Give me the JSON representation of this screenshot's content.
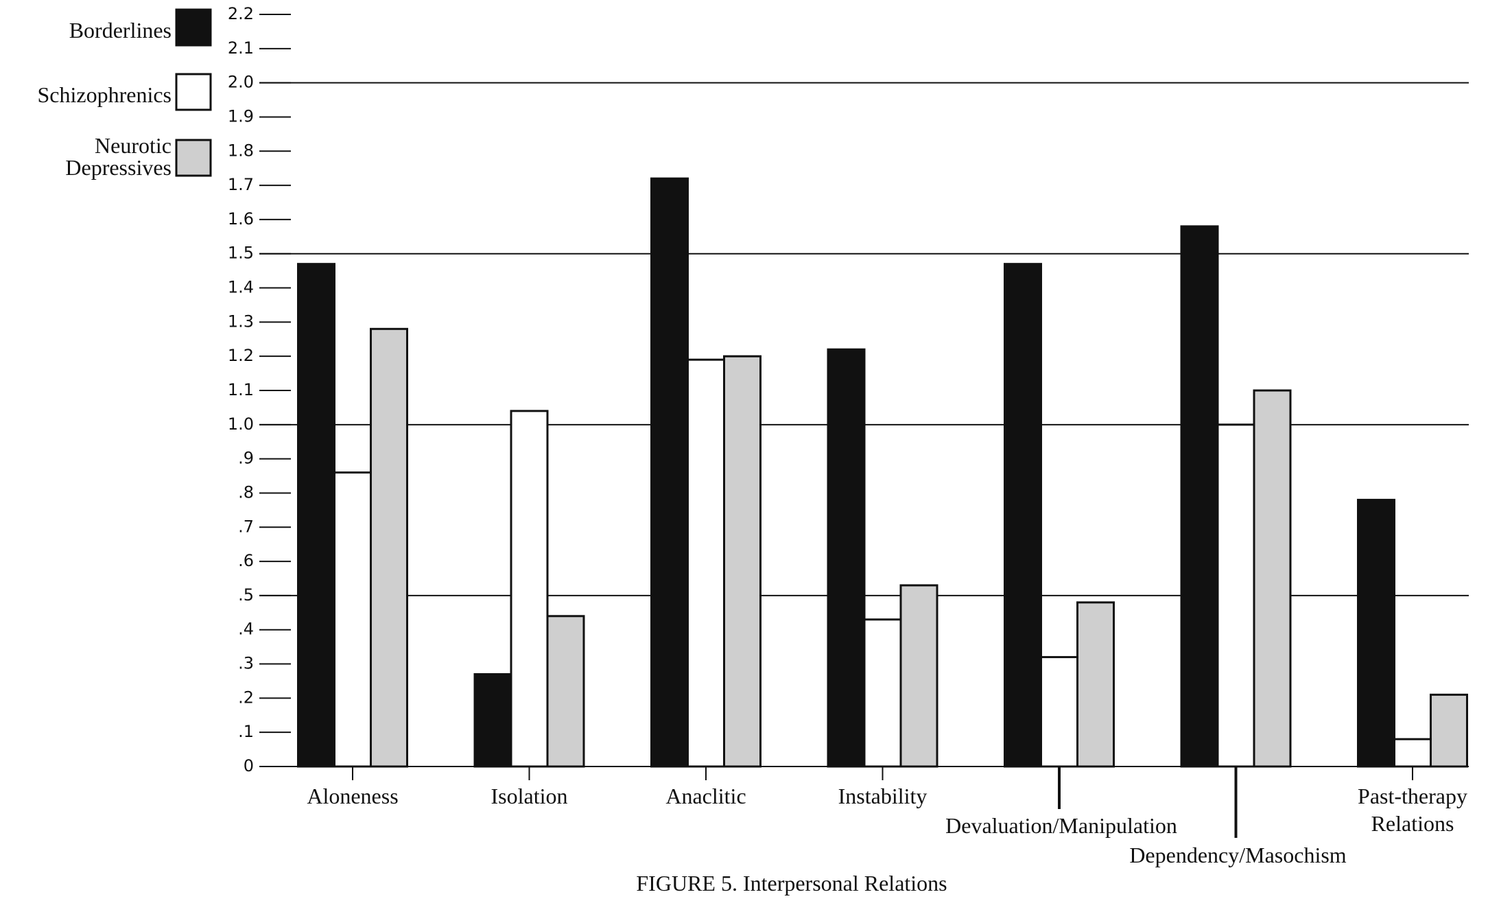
{
  "chart_data": {
    "type": "bar",
    "title": "FIGURE 5. Interpersonal Relations",
    "categories": [
      "Aloneness",
      "Isolation",
      "Anaclitic",
      "Instability",
      "Devaluation/Manipulation",
      "Dependency/Masochism",
      "Past-therapy Relations"
    ],
    "series": [
      {
        "name": "Borderlines",
        "color": "#111111",
        "values": [
          1.47,
          0.27,
          1.72,
          1.22,
          1.47,
          1.58,
          0.78
        ]
      },
      {
        "name": "Schizophrenics",
        "color": "#ffffff",
        "values": [
          0.86,
          1.04,
          1.19,
          0.43,
          0.32,
          1.0,
          0.08
        ]
      },
      {
        "name": "Neurotic Depressives",
        "color": "#cfcfcf",
        "values": [
          1.28,
          0.44,
          1.2,
          0.53,
          0.48,
          1.1,
          0.21
        ]
      }
    ],
    "ylim": [
      0,
      2.2
    ],
    "yticks": [
      0,
      {
        "value": 0.1,
        "label": ".1"
      },
      {
        "value": 0.2,
        "label": ".2"
      },
      {
        "value": 0.3,
        "label": ".3"
      },
      {
        "value": 0.4,
        "label": ".4"
      },
      {
        "value": 0.5,
        "label": ".5"
      },
      {
        "value": 0.6,
        "label": ".6"
      },
      {
        "value": 0.7,
        "label": ".7"
      },
      {
        "value": 0.8,
        "label": ".8"
      },
      {
        "value": 0.9,
        "label": ".9"
      },
      {
        "value": 1,
        "label": "1.0"
      },
      1.1,
      1.2,
      1.3,
      1.4,
      1.5,
      1.6,
      1.7,
      1.8,
      1.9,
      {
        "value": 2,
        "label": "2.0"
      },
      2.1,
      2.2
    ],
    "grid": true,
    "legend": "top-left"
  }
}
